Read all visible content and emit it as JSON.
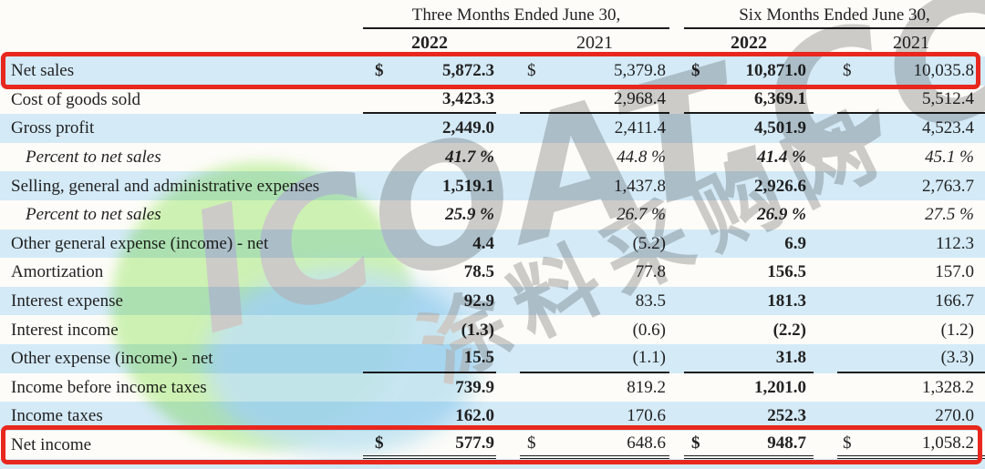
{
  "header": {
    "period_3m": "Three Months Ended June 30,",
    "period_6m": "Six Months Ended June 30,",
    "years": [
      "2022",
      "2021",
      "2022",
      "2021"
    ]
  },
  "table": {
    "currency_symbol": "$",
    "columns": [
      "Three Months 2022",
      "Three Months 2021",
      "Six Months 2022",
      "Six Months 2021"
    ],
    "rows": [
      {
        "label": "Net sales",
        "values": [
          "5,872.3",
          "5,379.8",
          "10,871.0",
          "10,035.8"
        ],
        "dollar": true,
        "stripe": true,
        "italic": false,
        "indent": false,
        "rule_below": false,
        "double_rule": false,
        "highlight": true
      },
      {
        "label": "Cost of goods sold",
        "values": [
          "3,423.3",
          "2,968.4",
          "6,369.1",
          "5,512.4"
        ],
        "dollar": false,
        "stripe": false,
        "italic": false,
        "indent": false,
        "rule_below": true,
        "double_rule": false,
        "highlight": false
      },
      {
        "label": "Gross profit",
        "values": [
          "2,449.0",
          "2,411.4",
          "4,501.9",
          "4,523.4"
        ],
        "dollar": false,
        "stripe": true,
        "italic": false,
        "indent": false,
        "rule_below": false,
        "double_rule": false,
        "highlight": false
      },
      {
        "label": "Percent to net sales",
        "values": [
          "41.7 %",
          "44.8 %",
          "41.4 %",
          "45.1 %"
        ],
        "dollar": false,
        "stripe": false,
        "italic": true,
        "indent": true,
        "rule_below": false,
        "double_rule": false,
        "highlight": false
      },
      {
        "label": "Selling, general and administrative expenses",
        "values": [
          "1,519.1",
          "1,437.8",
          "2,926.6",
          "2,763.7"
        ],
        "dollar": false,
        "stripe": true,
        "italic": false,
        "indent": false,
        "rule_below": false,
        "double_rule": false,
        "highlight": false
      },
      {
        "label": "Percent to net sales",
        "values": [
          "25.9 %",
          "26.7 %",
          "26.9 %",
          "27.5 %"
        ],
        "dollar": false,
        "stripe": false,
        "italic": true,
        "indent": true,
        "rule_below": false,
        "double_rule": false,
        "highlight": false
      },
      {
        "label": "Other general expense (income) - net",
        "values": [
          "4.4",
          "(5.2)",
          "6.9",
          "112.3"
        ],
        "dollar": false,
        "stripe": true,
        "italic": false,
        "indent": false,
        "rule_below": false,
        "double_rule": false,
        "highlight": false
      },
      {
        "label": "Amortization",
        "values": [
          "78.5",
          "77.8",
          "156.5",
          "157.0"
        ],
        "dollar": false,
        "stripe": false,
        "italic": false,
        "indent": false,
        "rule_below": false,
        "double_rule": false,
        "highlight": false
      },
      {
        "label": "Interest expense",
        "values": [
          "92.9",
          "83.5",
          "181.3",
          "166.7"
        ],
        "dollar": false,
        "stripe": true,
        "italic": false,
        "indent": false,
        "rule_below": false,
        "double_rule": false,
        "highlight": false
      },
      {
        "label": "Interest income",
        "values": [
          "(1.3)",
          "(0.6)",
          "(2.2)",
          "(1.2)"
        ],
        "dollar": false,
        "stripe": false,
        "italic": false,
        "indent": false,
        "rule_below": false,
        "double_rule": false,
        "highlight": false
      },
      {
        "label": "Other expense (income) - net",
        "values": [
          "15.5",
          "(1.1)",
          "31.8",
          "(3.3)"
        ],
        "dollar": false,
        "stripe": true,
        "italic": false,
        "indent": false,
        "rule_below": true,
        "double_rule": false,
        "highlight": false
      },
      {
        "label": "Income before income taxes",
        "values": [
          "739.9",
          "819.2",
          "1,201.0",
          "1,328.2"
        ],
        "dollar": false,
        "stripe": false,
        "italic": false,
        "indent": false,
        "rule_below": false,
        "double_rule": false,
        "highlight": false
      },
      {
        "label": "Income taxes",
        "values": [
          "162.0",
          "170.6",
          "252.3",
          "270.0"
        ],
        "dollar": false,
        "stripe": true,
        "italic": false,
        "indent": false,
        "rule_below": false,
        "double_rule": false,
        "highlight": false
      },
      {
        "label": "Net income",
        "values": [
          "577.9",
          "648.6",
          "948.7",
          "1,058.2"
        ],
        "dollar": true,
        "stripe": false,
        "italic": false,
        "indent": false,
        "rule_below": false,
        "double_rule": true,
        "highlight": true
      }
    ]
  },
  "watermark": {
    "logo_text": "ICOAT.CC",
    "cn_text": "涂料采购网"
  },
  "colors": {
    "stripe_blue": "#d4eaf7",
    "highlight_red": "#e8281e",
    "rule_black": "#1b1b1b",
    "watermark_gray": "#9d9d9d",
    "watermark_green": "#9fe970",
    "watermark_blue": "#86cdef"
  }
}
